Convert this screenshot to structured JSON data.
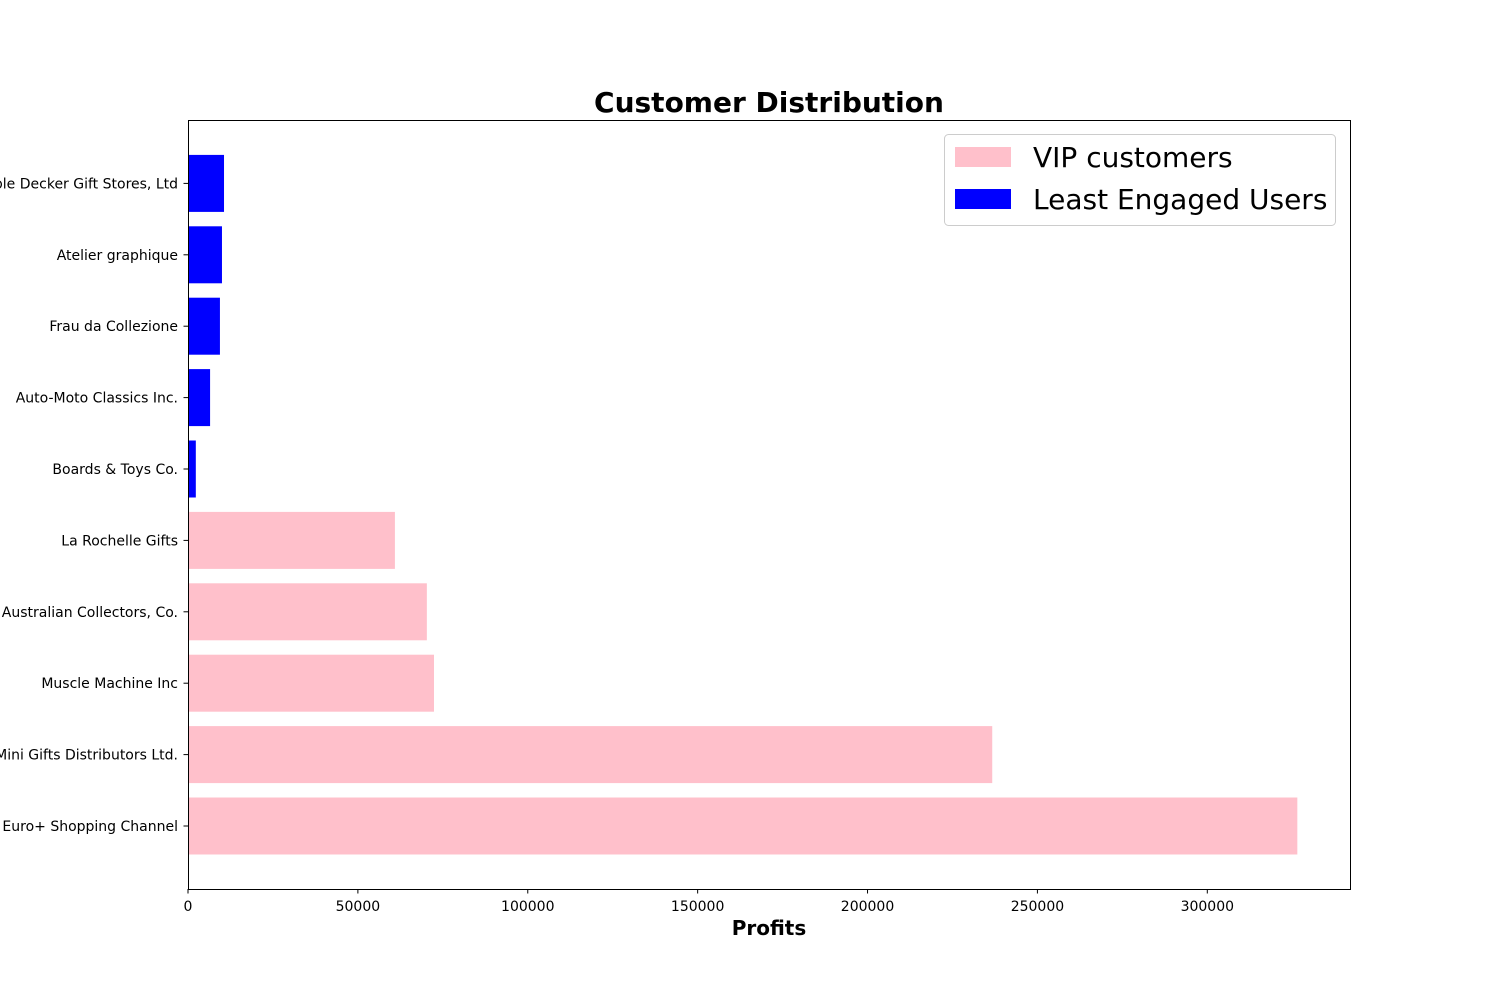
{
  "chart_data": {
    "type": "bar",
    "orientation": "horizontal",
    "title": "Customer Distribution",
    "xlabel": "Profits",
    "ylabel": "",
    "xlim": [
      0,
      342000
    ],
    "xticks": [
      0,
      50000,
      100000,
      150000,
      200000,
      250000,
      300000
    ],
    "grid": false,
    "legend_position": "top-right",
    "categories": [
      "Euro+ Shopping Channel",
      "Mini Gifts Distributors Ltd.",
      "Muscle Machine Inc",
      "Australian Collectors, Co.",
      "La Rochelle Gifts",
      "Boards & Toys Co.",
      "Auto-Moto Classics Inc.",
      "Frau da Collezione",
      "Atelier graphique",
      "Double Decker Gift Stores, Ltd"
    ],
    "series": [
      {
        "name": "VIP customers",
        "color": "#ffc0cb",
        "values": [
          326500,
          236700,
          72400,
          70300,
          60900,
          null,
          null,
          null,
          null,
          null
        ]
      },
      {
        "name": "Least Engaged Users",
        "color": "#0000ff",
        "values": [
          null,
          null,
          null,
          null,
          null,
          2300,
          6500,
          9400,
          10000,
          10600
        ]
      }
    ]
  }
}
